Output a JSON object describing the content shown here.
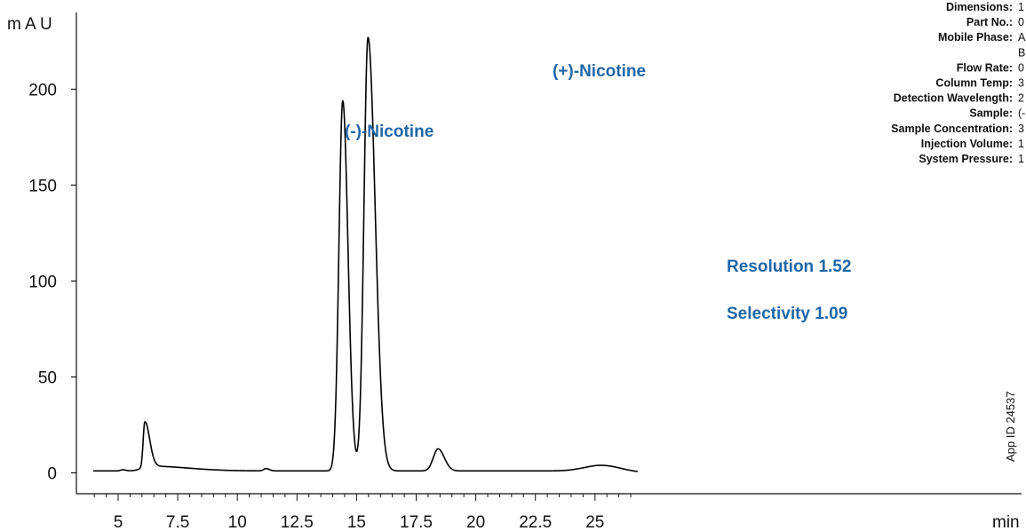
{
  "chart_data": {
    "type": "line",
    "ylabel": "m A U",
    "xunit": "min",
    "xlim": [
      4,
      26.8
    ],
    "ylim": [
      -5,
      240
    ],
    "xticks": [
      5,
      7.5,
      10,
      12.5,
      15,
      17.5,
      20,
      22.5,
      25
    ],
    "xtick_labels": [
      "5",
      "7.5",
      "10",
      "12.5",
      "15",
      "17.5",
      "20",
      "22.5",
      "25"
    ],
    "yticks": [
      0,
      50,
      100,
      150,
      200
    ],
    "ytick_labels": [
      "0",
      "50",
      "100",
      "150",
      "200"
    ],
    "grid": false,
    "series": [
      {
        "baseline": 1,
        "peaks": [
          {
            "t": 5.2,
            "h": 0.6,
            "sl": 0.1,
            "sr": 0.12
          },
          {
            "t": 6.12,
            "h": 23.5,
            "sl": 0.07,
            "sr": 0.2
          },
          {
            "t": 6.3,
            "h": 2.5,
            "sl": 0.3,
            "sr": 1.6
          },
          {
            "t": 11.2,
            "h": 1.2,
            "sl": 0.1,
            "sr": 0.14
          },
          {
            "t": 14.42,
            "h": 193,
            "sl": 0.16,
            "sr": 0.22
          },
          {
            "t": 15.48,
            "h": 226,
            "sl": 0.17,
            "sr": 0.3
          },
          {
            "t": 18.42,
            "h": 11.5,
            "sl": 0.2,
            "sr": 0.26
          },
          {
            "t": 25.3,
            "h": 3.3,
            "sl": 0.7,
            "sr": 0.8
          }
        ]
      }
    ],
    "annotations": [
      {
        "text": "(-)-Nicotine",
        "color": "#1f67a8"
      },
      {
        "text": "(+)-Nicotine",
        "color": "#1f67a8"
      },
      {
        "text": "Resolution 1.52",
        "color": "#1f67a8"
      },
      {
        "text": "Selectivity 1.09",
        "color": "#1f67a8"
      }
    ]
  },
  "conditions": [
    {
      "key": "Dimensions:",
      "value": "1"
    },
    {
      "key": "Part No.:",
      "value": "0"
    },
    {
      "key": "Mobile Phase:",
      "value": "A"
    },
    {
      "key": "",
      "value": "B"
    },
    {
      "key": "Flow Rate:",
      "value": "0"
    },
    {
      "key": "Column Temp:",
      "value": "3"
    },
    {
      "key": "Detection Wavelength:",
      "value": "2"
    },
    {
      "key": "Sample:",
      "value": "(-"
    },
    {
      "key": "Sample Concentration:",
      "value": "3"
    },
    {
      "key": "Injection Volume:",
      "value": "1"
    },
    {
      "key": "System Pressure:",
      "value": "1"
    }
  ],
  "app_id": "App ID 24537",
  "colors": {
    "trace": "#000000",
    "annotation": "#1f67a8",
    "axis": "#111111"
  }
}
